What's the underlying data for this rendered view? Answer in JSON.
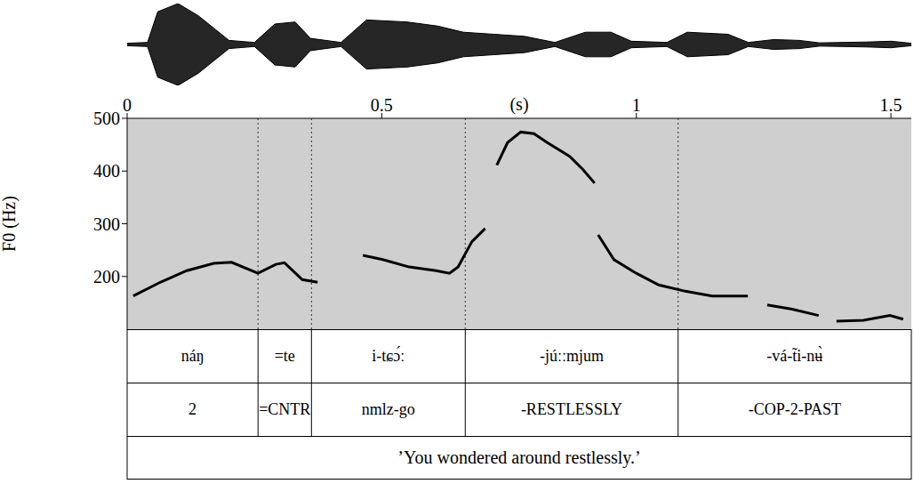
{
  "chart_data": [
    {
      "type": "area",
      "x": [
        0,
        0.04,
        0.06,
        0.1,
        0.14,
        0.17,
        0.2,
        0.25,
        0.29,
        0.33,
        0.36,
        0.42,
        0.47,
        0.55,
        0.61,
        0.66,
        0.72,
        0.78,
        0.84,
        0.9,
        0.95,
        0.99,
        1.06,
        1.1,
        1.18,
        1.22,
        1.27,
        1.32,
        1.36,
        1.45,
        1.5,
        1.54
      ],
      "values": [
        0.03,
        0.05,
        0.8,
        1.0,
        0.7,
        0.4,
        0.1,
        0.05,
        0.5,
        0.55,
        0.15,
        0.05,
        0.6,
        0.55,
        0.45,
        0.3,
        0.25,
        0.2,
        0.05,
        0.3,
        0.3,
        0.08,
        0.05,
        0.3,
        0.25,
        0.05,
        0.12,
        0.1,
        0.04,
        0.06,
        0.08,
        0.03
      ],
      "color": "#000000",
      "xlim": [
        0,
        1.54
      ],
      "ylim": [
        -1,
        1
      ],
      "tick_labels": false
    },
    {
      "type": "line",
      "x": [
        0.012,
        0.065,
        0.117,
        0.17,
        0.205,
        0.257,
        0.292,
        0.309,
        0.344,
        0.374,
        0.42,
        0.463,
        0.502,
        0.554,
        0.607,
        0.633,
        0.65,
        0.677,
        0.703,
        0.715,
        0.726,
        0.747,
        0.773,
        0.799,
        0.825,
        0.869,
        0.895,
        0.918,
        0.921,
        0.925,
        0.956,
        1.0,
        1.044,
        1.096,
        1.149,
        1.184,
        1.219,
        1.238,
        1.257,
        1.306,
        1.358,
        1.375,
        1.393,
        1.446,
        1.498,
        1.524
      ],
      "values": [
        163,
        189,
        211,
        225,
        227,
        206,
        223,
        226,
        194,
        189,
        null,
        240,
        232,
        218,
        211,
        206,
        218,
        266,
        291,
        null,
        411,
        454,
        474,
        471,
        454,
        428,
        403,
        377,
        null,
        279,
        232,
        206,
        184,
        172,
        163,
        163,
        163,
        null,
        146,
        138,
        126,
        null,
        115,
        117,
        126,
        119
      ],
      "color": "#000000",
      "xlim": [
        0,
        1.54
      ],
      "xticks": [
        0,
        0.5,
        1,
        1.5
      ],
      "xlabel": "(s)",
      "ylabel": "F0 (Hz)",
      "ylim": [
        100,
        500
      ],
      "yticks": [
        200,
        300,
        400,
        500
      ],
      "grid": false
    }
  ],
  "annotation": {
    "boundaries": [
      0.257,
      0.362,
      0.664,
      1.082
    ],
    "tiers": [
      [
        "náŋ",
        "=te",
        "i-tɕɔ́ː",
        "-júːːmjum",
        "-vá-t̃i-nʉ̀"
      ],
      [
        "2",
        "=CNTR",
        "nmlz-go",
        "-RESTLESSLY",
        "-COP-2-PAST"
      ],
      [
        "’You wondered around restlessly.’"
      ]
    ]
  }
}
